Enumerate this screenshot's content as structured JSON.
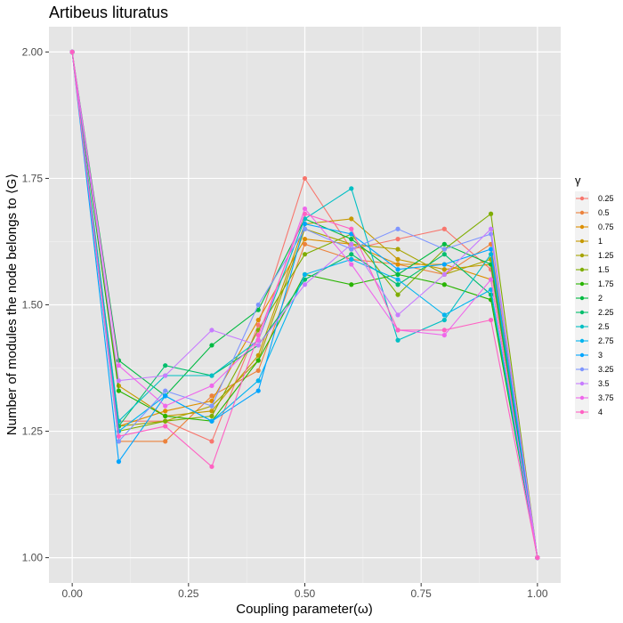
{
  "chart_data": {
    "type": "line",
    "title": "Artibeus lituratus",
    "xlabel": "Coupling parameter(ω)",
    "ylabel": "Number of modules the node belongs to ⟨G⟩",
    "xlim": [
      -0.05,
      1.05
    ],
    "ylim": [
      0.95,
      2.05
    ],
    "x_ticks": [
      "0.00",
      "0.25",
      "0.50",
      "0.75",
      "1.00"
    ],
    "y_ticks": [
      "1.00",
      "1.25",
      "1.50",
      "1.75",
      "2.00"
    ],
    "grid": true,
    "background": "#e5e5e5",
    "legend": {
      "title": "γ",
      "position": "right"
    },
    "x": [
      0,
      0.1,
      0.2,
      0.3,
      0.4,
      0.5,
      0.6,
      0.7,
      0.8,
      0.9,
      1.0
    ],
    "series": [
      {
        "name": "0.25",
        "color": "#f8766d",
        "values": [
          2.0,
          1.27,
          1.27,
          1.23,
          1.46,
          1.75,
          1.61,
          1.63,
          1.65,
          1.57,
          1.0
        ]
      },
      {
        "name": "0.5",
        "color": "#ec823c",
        "values": [
          2.0,
          1.23,
          1.23,
          1.32,
          1.37,
          1.62,
          1.59,
          1.58,
          1.56,
          1.62,
          1.0
        ]
      },
      {
        "name": "0.75",
        "color": "#dc8e00",
        "values": [
          2.0,
          1.26,
          1.29,
          1.31,
          1.47,
          1.63,
          1.62,
          1.58,
          1.58,
          1.55,
          1.0
        ]
      },
      {
        "name": "1",
        "color": "#c69900",
        "values": [
          2.0,
          1.34,
          1.28,
          1.29,
          1.4,
          1.66,
          1.67,
          1.59,
          1.57,
          1.58,
          1.0
        ]
      },
      {
        "name": "1.25",
        "color": "#a7a400",
        "values": [
          2.0,
          1.26,
          1.27,
          1.3,
          1.39,
          1.65,
          1.62,
          1.61,
          1.56,
          1.59,
          1.0
        ]
      },
      {
        "name": "1.5",
        "color": "#7fad00",
        "values": [
          2.0,
          1.25,
          1.27,
          1.28,
          1.45,
          1.6,
          1.64,
          1.52,
          1.61,
          1.68,
          1.0
        ]
      },
      {
        "name": "1.75",
        "color": "#28b400",
        "values": [
          2.0,
          1.33,
          1.28,
          1.27,
          1.39,
          1.56,
          1.54,
          1.56,
          1.54,
          1.51,
          1.0
        ]
      },
      {
        "name": "2",
        "color": "#00ba42",
        "values": [
          2.0,
          1.39,
          1.32,
          1.42,
          1.49,
          1.67,
          1.63,
          1.56,
          1.62,
          1.58,
          1.0
        ]
      },
      {
        "name": "2.25",
        "color": "#00be6c",
        "values": [
          2.0,
          1.26,
          1.38,
          1.36,
          1.42,
          1.55,
          1.6,
          1.54,
          1.6,
          1.52,
          1.0
        ]
      },
      {
        "name": "2.5",
        "color": "#00bfc4",
        "values": [
          2.0,
          1.27,
          1.36,
          1.36,
          1.43,
          1.67,
          1.73,
          1.43,
          1.47,
          1.6,
          1.0
        ]
      },
      {
        "name": "2.75",
        "color": "#00b4ef",
        "values": [
          2.0,
          1.25,
          1.32,
          1.27,
          1.35,
          1.56,
          1.59,
          1.55,
          1.48,
          1.53,
          1.0
        ]
      },
      {
        "name": "3",
        "color": "#00a5ff",
        "values": [
          2.0,
          1.19,
          1.32,
          1.27,
          1.33,
          1.66,
          1.64,
          1.57,
          1.58,
          1.61,
          1.0
        ]
      },
      {
        "name": "3.25",
        "color": "#7f96ff",
        "values": [
          2.0,
          1.23,
          1.33,
          1.3,
          1.5,
          1.65,
          1.61,
          1.65,
          1.61,
          1.64,
          1.0
        ]
      },
      {
        "name": "3.5",
        "color": "#c77cff",
        "values": [
          2.0,
          1.35,
          1.36,
          1.45,
          1.42,
          1.54,
          1.62,
          1.48,
          1.56,
          1.65,
          1.0
        ]
      },
      {
        "name": "3.75",
        "color": "#ef67eb",
        "values": [
          2.0,
          1.38,
          1.3,
          1.34,
          1.43,
          1.69,
          1.58,
          1.45,
          1.44,
          1.55,
          1.0
        ]
      },
      {
        "name": "4",
        "color": "#ff61c3",
        "values": [
          2.0,
          1.24,
          1.26,
          1.18,
          1.44,
          1.68,
          1.65,
          1.45,
          1.45,
          1.47,
          1.0
        ]
      }
    ]
  }
}
